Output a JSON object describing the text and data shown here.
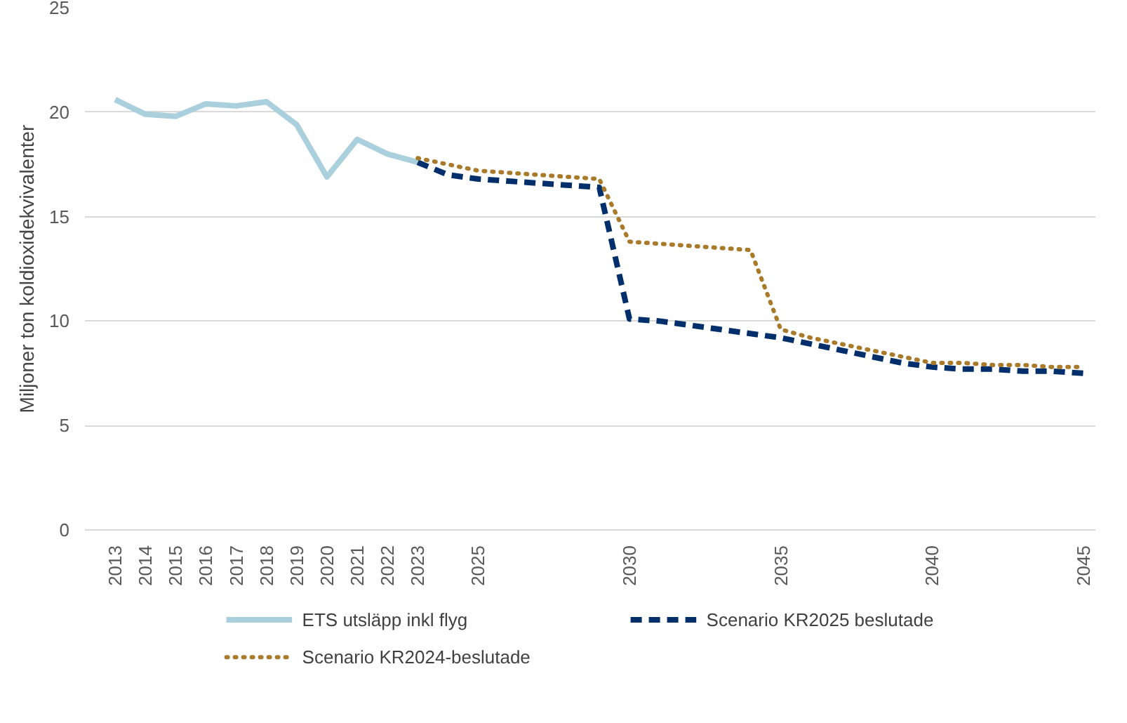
{
  "chart_data": {
    "type": "line",
    "ylabel": "Miljoner ton koldioxidekvivalenter",
    "xlim": [
      2012,
      2045.4
    ],
    "xticks": [
      2013,
      2014,
      2015,
      2016,
      2017,
      2018,
      2019,
      2020,
      2021,
      2022,
      2023,
      2025,
      2030,
      2035,
      2040,
      2045
    ],
    "ylim": [
      0,
      25
    ],
    "yticks": [
      0,
      5,
      10,
      15,
      20,
      25
    ],
    "grid": "y",
    "legend": "bottom",
    "series": [
      {
        "name": "ETS utsläpp inkl flyg",
        "color": "#a9d0dc",
        "line_style": "solid",
        "x": [
          2013,
          2014,
          2015,
          2016,
          2017,
          2018,
          2019,
          2020,
          2021,
          2022,
          2023
        ],
        "values": [
          20.6,
          19.9,
          19.8,
          20.4,
          20.3,
          20.5,
          19.4,
          16.9,
          18.7,
          18.0,
          17.6
        ]
      },
      {
        "name": "Scenario KR2025 beslutade",
        "color": "#002f6c",
        "line_style": "dashed",
        "x": [
          2023,
          2024,
          2025,
          2026,
          2027,
          2028,
          2029,
          2030,
          2031,
          2032,
          2033,
          2034,
          2035,
          2036,
          2037,
          2038,
          2039,
          2040,
          2041,
          2042,
          2043,
          2044,
          2045
        ],
        "values": [
          17.6,
          17.0,
          16.8,
          16.7,
          16.6,
          16.5,
          16.4,
          10.1,
          10.0,
          9.8,
          9.6,
          9.4,
          9.2,
          8.9,
          8.6,
          8.3,
          8.0,
          7.8,
          7.7,
          7.7,
          7.6,
          7.6,
          7.5
        ]
      },
      {
        "name": "Scenario KR2024-beslutade",
        "color": "#a87a2a",
        "line_style": "dotted",
        "x": [
          2023,
          2024,
          2025,
          2026,
          2027,
          2028,
          2029,
          2030,
          2031,
          2032,
          2033,
          2034,
          2035,
          2036,
          2037,
          2038,
          2039,
          2040,
          2041,
          2042,
          2043,
          2044,
          2045
        ],
        "values": [
          17.8,
          17.5,
          17.2,
          17.1,
          17.0,
          16.9,
          16.8,
          13.8,
          13.7,
          13.6,
          13.5,
          13.4,
          9.6,
          9.2,
          8.9,
          8.6,
          8.3,
          8.0,
          8.0,
          7.9,
          7.9,
          7.8,
          7.8
        ]
      }
    ]
  }
}
